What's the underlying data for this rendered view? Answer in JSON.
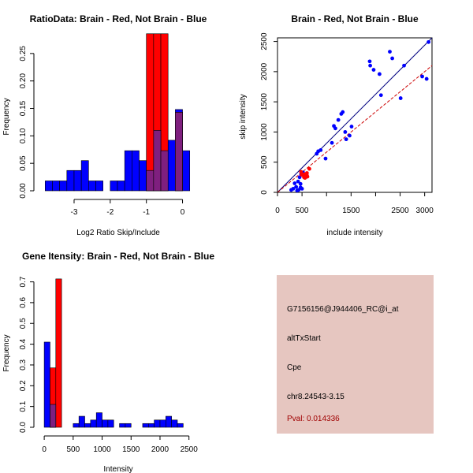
{
  "colors": {
    "brain": "#ff0000",
    "not_brain": "#0000ff",
    "overlap": "#7f1f7f",
    "panel_bg": "#e6c6c0",
    "pval_text": "#a00000",
    "fit_line": "#000080",
    "diag_line": "#cc0000"
  },
  "chart_data": [
    {
      "id": "ratio-hist",
      "type": "bar",
      "title": "RatioData: Brain - Red, Not Brain - Blue",
      "xlabel": "Log2 Ratio Skip/Include",
      "ylabel": "Frequency",
      "xlim": [
        -3.85,
        0.25
      ],
      "ylim": [
        0,
        0.29
      ],
      "xticks": [
        -3,
        -2,
        -1,
        0
      ],
      "yticks": [
        0.0,
        0.05,
        0.1,
        0.15,
        0.2,
        0.25
      ],
      "ytick_labels": [
        "0.00",
        "0.05",
        "0.10",
        "0.15",
        "0.20",
        "0.25"
      ],
      "series": [
        {
          "name": "Not Brain",
          "bin_width": 0.2,
          "bin_starts": [
            -3.8,
            -3.6,
            -3.4,
            -3.2,
            -3.0,
            -2.8,
            -2.6,
            -2.4,
            -2.2,
            -2.0,
            -1.8,
            -1.6,
            -1.4,
            -1.2,
            -1.0,
            -0.8,
            -0.6,
            -0.4,
            -0.2,
            0.0
          ],
          "values": [
            0.018,
            0.018,
            0.018,
            0.037,
            0.037,
            0.055,
            0.018,
            0.018,
            0.0,
            0.018,
            0.018,
            0.073,
            0.073,
            0.055,
            0.037,
            0.11,
            0.073,
            0.092,
            0.148,
            0.073
          ]
        },
        {
          "name": "Brain",
          "bin_width": 0.2,
          "bin_starts": [
            -1.0,
            -0.8,
            -0.6,
            -0.4,
            -0.2
          ],
          "values": [
            0.286,
            0.286,
            0.286,
            0.0,
            0.143
          ]
        }
      ]
    },
    {
      "id": "intensity-scatter",
      "type": "scatter",
      "title": "Brain - Red, Not Brain - Blue",
      "xlabel": "include intensity",
      "ylabel": "skip intensity",
      "xlim": [
        0,
        3150
      ],
      "ylim": [
        0,
        2560
      ],
      "xticks": [
        0,
        500,
        1000,
        1500,
        2000,
        2500,
        3000
      ],
      "xtick_labels": [
        "0",
        "500",
        "",
        "1500",
        "",
        "2500",
        "3000"
      ],
      "yticks": [
        0,
        500,
        1000,
        1500,
        2000,
        2500
      ],
      "ytick_labels": [
        "0",
        "500",
        "1000",
        "1500",
        "2000",
        "2500"
      ],
      "series": [
        {
          "name": "Not Brain",
          "x": [
            1880,
            1890,
            1960,
            2080,
            2290,
            2340,
            2510,
            2580,
            2950,
            3040,
            3080,
            1300,
            1380,
            1400,
            1510,
            1470,
            1150,
            1180,
            1240,
            1330,
            1110,
            800,
            880,
            830,
            980,
            570,
            420,
            450,
            480,
            520,
            470,
            320,
            380,
            350,
            280,
            400,
            470,
            500,
            430,
            2110
          ],
          "y": [
            2170,
            2100,
            2030,
            1960,
            2330,
            2220,
            1560,
            2100,
            1920,
            1880,
            2490,
            1300,
            1000,
            880,
            1090,
            940,
            1100,
            1060,
            1200,
            1330,
            820,
            640,
            700,
            680,
            560,
            250,
            180,
            250,
            300,
            330,
            140,
            60,
            90,
            150,
            40,
            30,
            80,
            60,
            40,
            1610
          ]
        },
        {
          "name": "Brain",
          "x": [
            480,
            540,
            560,
            610,
            600,
            650,
            540,
            490,
            600
          ],
          "y": [
            340,
            300,
            240,
            260,
            320,
            390,
            250,
            290,
            280
          ]
        }
      ],
      "fit_line": {
        "x": [
          0,
          3150
        ],
        "y": [
          0,
          2560
        ]
      },
      "ref_line": {
        "x": [
          0,
          3150
        ],
        "y": [
          0,
          2100
        ]
      }
    },
    {
      "id": "gene-intensity-hist",
      "type": "bar",
      "title": "Gene Itensity: Brain - Red, Not Brain - Blue",
      "xlabel": "Intensity",
      "ylabel": "Frequency",
      "xlim": [
        -15,
        2545
      ],
      "ylim": [
        0,
        0.74
      ],
      "xticks": [
        0,
        500,
        1000,
        1500,
        2000,
        2500
      ],
      "yticks": [
        0.0,
        0.1,
        0.2,
        0.3,
        0.4,
        0.5,
        0.6,
        0.7
      ],
      "ytick_labels": [
        "0.0",
        "0.1",
        "0.2",
        "0.3",
        "0.4",
        "0.5",
        "0.6",
        "0.7"
      ],
      "series": [
        {
          "name": "Not Brain",
          "bin_width": 100,
          "bin_starts": [
            0,
            100,
            200,
            300,
            400,
            500,
            600,
            700,
            800,
            900,
            1000,
            1100,
            1200,
            1300,
            1400,
            1500,
            1600,
            1700,
            1800,
            1900,
            2000,
            2100,
            2200,
            2300,
            2400
          ],
          "values": [
            0.41,
            0.11,
            0.0,
            0.0,
            0.0,
            0.018,
            0.053,
            0.018,
            0.035,
            0.07,
            0.035,
            0.035,
            0.0,
            0.018,
            0.018,
            0.0,
            0.0,
            0.018,
            0.018,
            0.035,
            0.035,
            0.053,
            0.035,
            0.018,
            0.0
          ]
        },
        {
          "name": "Brain",
          "bin_width": 100,
          "bin_starts": [
            100,
            200
          ],
          "values": [
            0.286,
            0.714
          ]
        }
      ]
    }
  ],
  "info_panel": {
    "probe_id": "G7156156@J944406_RC@i_at",
    "event_type": "altTxStart",
    "gene": "Cpe",
    "location": "chr8.24543-3.15",
    "pval": "Pval: 0.014336"
  }
}
